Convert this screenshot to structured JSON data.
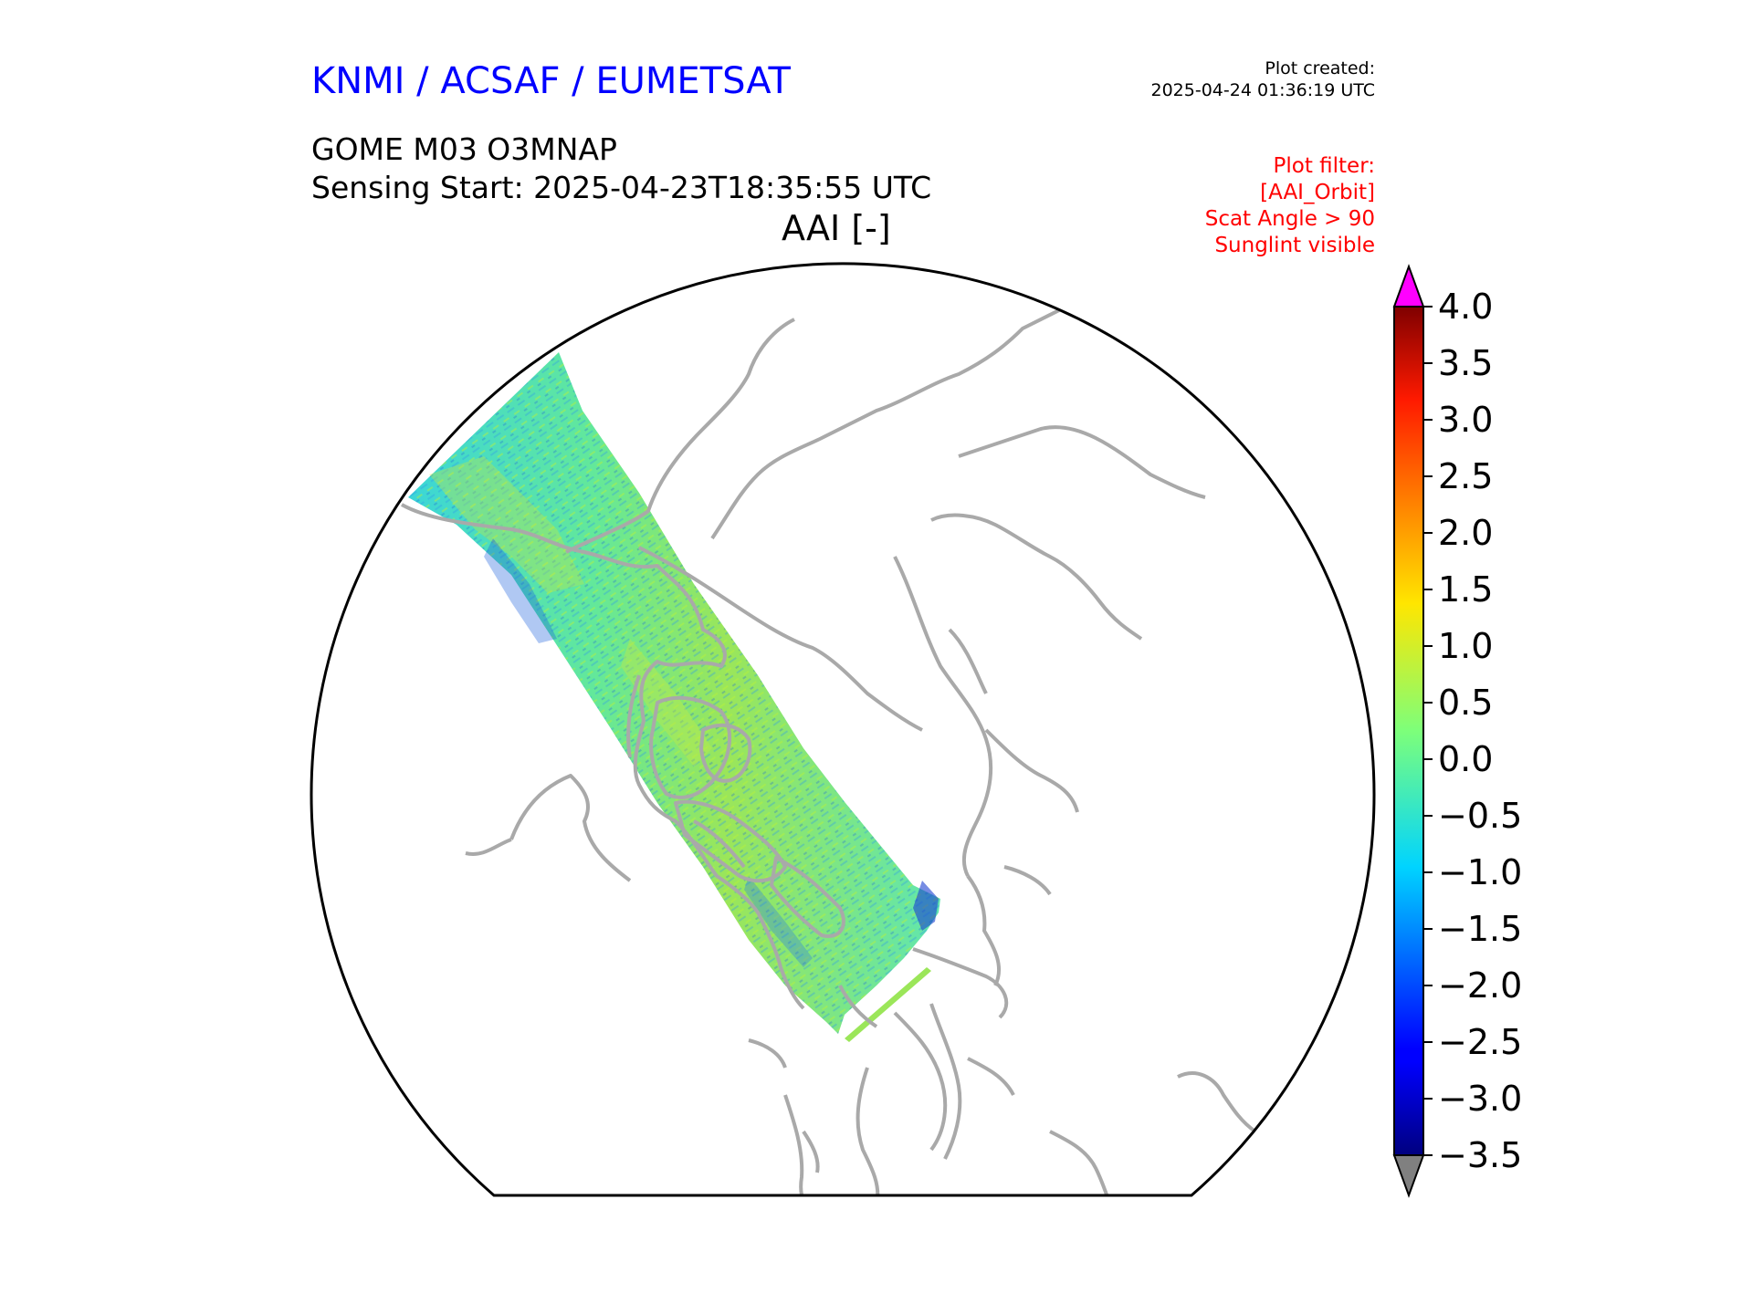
{
  "header": {
    "agency": "KNMI / ACSAF / EUMETSAT",
    "product": "GOME M03 O3MNAP",
    "sensing_start": "Sensing Start: 2025-04-23T18:35:55 UTC",
    "variable_title": "AAI [-]",
    "created_label": "Plot created:",
    "created_time": "2025-04-24 01:36:19 UTC"
  },
  "filters": [
    "Plot filter:",
    "[AAI_Orbit]",
    "Scat Angle > 90",
    "Sunglint visible"
  ],
  "colors": {
    "agency": "#0000ff",
    "filters": "#ff0000",
    "coastline": "#a9a9a9",
    "over": "#ff00ff",
    "under": "#808080"
  },
  "colorbar": {
    "min": -3.5,
    "max": 4.0,
    "ticks": [
      "4.0",
      "3.5",
      "3.0",
      "2.5",
      "2.0",
      "1.5",
      "1.0",
      "0.5",
      "0.0",
      "−0.5",
      "−1.0",
      "−1.5",
      "−2.0",
      "−2.5",
      "−3.0",
      "−3.5"
    ],
    "colormap": "jet"
  },
  "map": {
    "projection": "north polar stereographic",
    "coverage": "single GOME orbit swath over the Arctic"
  }
}
